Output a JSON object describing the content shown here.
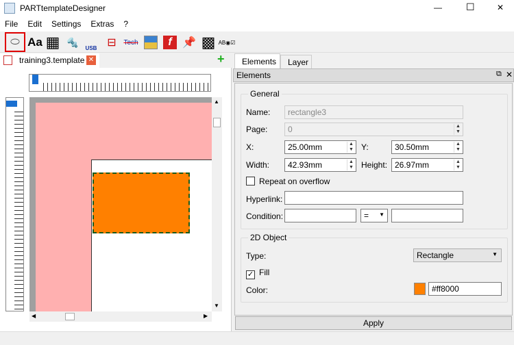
{
  "window": {
    "title": "PARTtemplateDesigner",
    "controls": [
      "—",
      "☐",
      "✕"
    ]
  },
  "menu": [
    "File",
    "Edit",
    "Settings",
    "Extras",
    "?"
  ],
  "toolbar": [
    {
      "icon": "ellipse-icon",
      "glyph": "⬭"
    },
    {
      "icon": "text-icon",
      "glyph": "Aa"
    },
    {
      "icon": "table-icon",
      "glyph": "▦"
    },
    {
      "icon": "bolt-icon",
      "glyph": "🔩"
    },
    {
      "icon": "bolt-usb-icon",
      "glyph": "USB"
    },
    {
      "icon": "dimension-icon",
      "glyph": "⊟"
    },
    {
      "icon": "tech-dimension-icon",
      "glyph": "Tech"
    },
    {
      "icon": "image-icon",
      "glyph": "▣"
    },
    {
      "icon": "flash-icon",
      "glyph": "f"
    },
    {
      "icon": "pin-icon",
      "glyph": "📌"
    },
    {
      "icon": "qr-code-icon",
      "glyph": "▩"
    },
    {
      "icon": "form-fields-icon",
      "glyph": "AB◉☑"
    }
  ],
  "document": {
    "tab": "training3.template",
    "add": "+",
    "close": "✕"
  },
  "canvas": {
    "element_color": "#ff8000",
    "page_color": "#ffb0b0"
  },
  "panel": {
    "tabs": [
      "Elements",
      "Layer"
    ],
    "title": "Elements",
    "general": {
      "title": "General",
      "name_label": "Name:",
      "name": "rectangle3",
      "page_label": "Page:",
      "page": "0",
      "x_label": "X:",
      "x": "25.00mm",
      "y_label": "Y:",
      "y": "30.50mm",
      "width_label": "Width:",
      "width": "42.93mm",
      "height_label": "Height:",
      "height": "26.97mm",
      "repeat_label": "Repeat on overflow",
      "repeat_checked": false,
      "hyperlink_label": "Hyperlink:",
      "hyperlink": "",
      "condition_label": "Condition:",
      "condition_left": "",
      "condition_op": "=",
      "condition_right": ""
    },
    "object2d": {
      "title": "2D Object",
      "type_label": "Type:",
      "type": "Rectangle",
      "fill_label": "Fill",
      "fill_checked": true,
      "color_label": "Color:",
      "color": "#ff8000"
    },
    "apply": "Apply"
  }
}
